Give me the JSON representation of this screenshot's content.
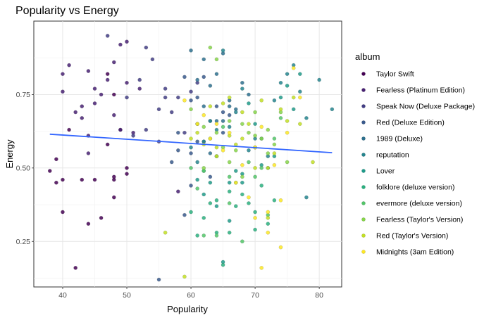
{
  "chart_data": {
    "type": "scatter",
    "title": "Popularity vs Energy",
    "xlabel": "Popularity",
    "ylabel": "Energy",
    "xlim": [
      35.5,
      83.5
    ],
    "ylim": [
      0.095,
      1.0
    ],
    "x_ticks": [
      40,
      50,
      60,
      70,
      80
    ],
    "y_ticks": [
      0.25,
      0.5,
      0.75
    ],
    "y_tick_labels": [
      "0.25",
      "0.50",
      "0.75"
    ],
    "grid": true,
    "legend_title": "album",
    "legend_position": "right",
    "trend_line": {
      "x": [
        38,
        82
      ],
      "y": [
        0.615,
        0.552
      ],
      "color": "#3366ff"
    },
    "series": [
      {
        "name": "Taylor Swift",
        "color": "#440154",
        "points": [
          [
            38,
            0.49
          ],
          [
            39,
            0.45
          ],
          [
            39,
            0.53
          ],
          [
            40,
            0.46
          ],
          [
            40,
            0.35
          ],
          [
            41,
            0.63
          ],
          [
            42,
            0.16
          ],
          [
            43,
            0.46
          ],
          [
            44,
            0.31
          ],
          [
            45,
            0.46
          ],
          [
            46,
            0.33
          ],
          [
            47,
            0.58
          ],
          [
            48,
            0.46
          ],
          [
            48,
            0.47
          ],
          [
            48,
            0.4
          ],
          [
            49,
            0.63
          ],
          [
            50,
            0.48
          ],
          [
            50,
            0.5
          ],
          [
            47,
            0.82
          ],
          [
            48,
            0.75
          ]
        ]
      },
      {
        "name": "Fearless (Platinum Edition)",
        "color": "#482173",
        "points": [
          [
            40,
            0.82
          ],
          [
            40,
            0.76
          ],
          [
            41,
            0.85
          ],
          [
            42,
            0.69
          ],
          [
            43,
            0.71
          ],
          [
            44,
            0.55
          ],
          [
            44,
            0.83
          ],
          [
            45,
            0.77
          ],
          [
            46,
            0.75
          ],
          [
            47,
            0.8
          ],
          [
            48,
            0.86
          ],
          [
            49,
            0.92
          ],
          [
            50,
            0.93
          ],
          [
            50,
            0.79
          ],
          [
            51,
            0.62
          ],
          [
            52,
            0.77
          ],
          [
            49,
            0.63
          ],
          [
            44,
            0.61
          ],
          [
            43,
            0.67
          ],
          [
            45,
            0.72
          ],
          [
            48,
            0.68
          ],
          [
            58,
            0.42
          ]
        ]
      },
      {
        "name": "Speak Now (Deluxe Package)",
        "color": "#433e85",
        "points": [
          [
            47,
            0.95
          ],
          [
            50,
            0.74
          ],
          [
            51,
            0.61
          ],
          [
            52,
            0.8
          ],
          [
            53,
            0.91
          ],
          [
            54,
            0.87
          ],
          [
            55,
            0.7
          ],
          [
            56,
            0.77
          ],
          [
            57,
            0.69
          ],
          [
            58,
            0.74
          ],
          [
            59,
            0.62
          ],
          [
            60,
            0.76
          ],
          [
            55,
            0.59
          ],
          [
            53,
            0.63
          ],
          [
            56,
            0.74
          ],
          [
            61,
            0.79
          ]
        ]
      },
      {
        "name": "Red (Deluxe Edition)",
        "color": "#38598c",
        "points": [
          [
            55,
            0.12
          ],
          [
            57,
            0.52
          ],
          [
            58,
            0.62
          ],
          [
            59,
            0.34
          ],
          [
            60,
            0.55
          ],
          [
            60,
            0.73
          ],
          [
            61,
            0.74
          ],
          [
            62,
            0.81
          ],
          [
            63,
            0.66
          ],
          [
            64,
            0.71
          ],
          [
            65,
            0.69
          ],
          [
            66,
            0.68
          ],
          [
            59,
            0.81
          ],
          [
            62,
            0.59
          ],
          [
            60,
            0.44
          ],
          [
            61,
            0.59
          ],
          [
            63,
            0.47
          ],
          [
            64,
            0.54
          ],
          [
            58,
            0.56
          ],
          [
            65,
            0.62
          ]
        ]
      },
      {
        "name": "1989 (Deluxe)",
        "color": "#2d708e",
        "points": [
          [
            60,
            0.9
          ],
          [
            61,
            0.8
          ],
          [
            62,
            0.71
          ],
          [
            63,
            0.78
          ],
          [
            64,
            0.66
          ],
          [
            65,
            0.89
          ],
          [
            66,
            0.73
          ],
          [
            67,
            0.7
          ],
          [
            68,
            0.79
          ],
          [
            69,
            0.75
          ],
          [
            62,
            0.87
          ],
          [
            66,
            0.71
          ],
          [
            64,
            0.82
          ],
          [
            61,
            0.65
          ],
          [
            63,
            0.55
          ],
          [
            65,
            0.66
          ]
        ]
      },
      {
        "name": "reputation",
        "color": "#25858e",
        "points": [
          [
            60,
            0.57
          ],
          [
            61,
            0.52
          ],
          [
            62,
            0.59
          ],
          [
            63,
            0.66
          ],
          [
            64,
            0.63
          ],
          [
            65,
            0.9
          ],
          [
            66,
            0.64
          ],
          [
            67,
            0.69
          ],
          [
            68,
            0.77
          ],
          [
            69,
            0.56
          ],
          [
            70,
            0.6
          ],
          [
            71,
            0.6
          ],
          [
            72,
            0.54
          ],
          [
            73,
            0.73
          ],
          [
            74,
            0.79
          ],
          [
            75,
            0.82
          ],
          [
            76,
            0.85
          ],
          [
            77,
            0.76
          ],
          [
            78,
            0.67
          ],
          [
            80,
            0.8
          ],
          [
            82,
            0.7
          ],
          [
            78,
            0.4
          ]
        ]
      },
      {
        "name": "Lover",
        "color": "#1e9b8a",
        "points": [
          [
            61,
            0.46
          ],
          [
            62,
            0.41
          ],
          [
            63,
            0.45
          ],
          [
            64,
            0.37
          ],
          [
            65,
            0.18
          ],
          [
            66,
            0.32
          ],
          [
            67,
            0.49
          ],
          [
            68,
            0.48
          ],
          [
            69,
            0.72
          ],
          [
            70,
            0.65
          ],
          [
            71,
            0.51
          ],
          [
            72,
            0.5
          ],
          [
            73,
            0.54
          ],
          [
            74,
            0.74
          ],
          [
            75,
            0.78
          ],
          [
            76,
            0.7
          ],
          [
            77,
            0.82
          ],
          [
            70,
            0.57
          ],
          [
            68,
            0.45
          ],
          [
            66,
            0.45
          ]
        ]
      },
      {
        "name": "folklore (deluxe version)",
        "color": "#2ab07f",
        "points": [
          [
            60,
            0.35
          ],
          [
            61,
            0.27
          ],
          [
            62,
            0.33
          ],
          [
            63,
            0.38
          ],
          [
            64,
            0.28
          ],
          [
            65,
            0.17
          ],
          [
            66,
            0.42
          ],
          [
            67,
            0.37
          ],
          [
            68,
            0.41
          ],
          [
            69,
            0.38
          ],
          [
            70,
            0.35
          ],
          [
            71,
            0.44
          ],
          [
            72,
            0.31
          ],
          [
            73,
            0.39
          ],
          [
            62,
            0.49
          ],
          [
            64,
            0.39
          ],
          [
            66,
            0.28
          ],
          [
            70,
            0.29
          ]
        ]
      },
      {
        "name": "evermore (deluxe version)",
        "color": "#52c569",
        "points": [
          [
            60,
            0.5
          ],
          [
            61,
            0.43
          ],
          [
            62,
            0.49
          ],
          [
            63,
            0.6
          ],
          [
            64,
            0.27
          ],
          [
            65,
            0.64
          ],
          [
            66,
            0.38
          ],
          [
            67,
            0.45
          ],
          [
            68,
            0.25
          ],
          [
            69,
            0.52
          ],
          [
            70,
            0.47
          ],
          [
            71,
            0.5
          ],
          [
            72,
            0.34
          ],
          [
            73,
            0.6
          ],
          [
            74,
            0.67
          ],
          [
            62,
            0.27
          ],
          [
            64,
            0.54
          ],
          [
            66,
            0.47
          ]
        ]
      },
      {
        "name": "Fearless (Taylor's Version)",
        "color": "#86d549",
        "points": [
          [
            60,
            0.7
          ],
          [
            61,
            0.65
          ],
          [
            62,
            0.64
          ],
          [
            63,
            0.91
          ],
          [
            64,
            0.87
          ],
          [
            65,
            0.57
          ],
          [
            66,
            0.66
          ],
          [
            67,
            0.56
          ],
          [
            68,
            0.65
          ],
          [
            69,
            0.62
          ],
          [
            70,
            0.69
          ],
          [
            71,
            0.6
          ],
          [
            72,
            0.63
          ],
          [
            73,
            0.58
          ],
          [
            74,
            0.69
          ],
          [
            75,
            0.52
          ],
          [
            62,
            0.5
          ],
          [
            66,
            0.52
          ],
          [
            68,
            0.47
          ],
          [
            70,
            0.61
          ],
          [
            64,
            0.62
          ],
          [
            72,
            0.55
          ]
        ]
      },
      {
        "name": "Red (Taylor's Version)",
        "color": "#c2df23",
        "points": [
          [
            59,
            0.13
          ],
          [
            60,
            0.6
          ],
          [
            61,
            0.62
          ],
          [
            62,
            0.58
          ],
          [
            63,
            0.71
          ],
          [
            64,
            0.57
          ],
          [
            65,
            0.72
          ],
          [
            66,
            0.74
          ],
          [
            67,
            0.58
          ],
          [
            68,
            0.6
          ],
          [
            69,
            0.65
          ],
          [
            70,
            0.57
          ],
          [
            71,
            0.73
          ],
          [
            72,
            0.33
          ],
          [
            73,
            0.55
          ],
          [
            74,
            0.7
          ],
          [
            75,
            0.66
          ],
          [
            76,
            0.74
          ],
          [
            77,
            0.65
          ],
          [
            79,
            0.52
          ],
          [
            56,
            0.28
          ],
          [
            66,
            0.61
          ],
          [
            70,
            0.5
          ],
          [
            68,
            0.69
          ],
          [
            64,
            0.54
          ],
          [
            72,
            0.5
          ]
        ]
      },
      {
        "name": "Midnights (3am Edition)",
        "color": "#fde725",
        "points": [
          [
            59,
            0.73
          ],
          [
            61,
            0.65
          ],
          [
            62,
            0.68
          ],
          [
            63,
            0.6
          ],
          [
            64,
            0.65
          ],
          [
            65,
            0.56
          ],
          [
            66,
            0.62
          ],
          [
            67,
            0.45
          ],
          [
            68,
            0.51
          ],
          [
            69,
            0.4
          ],
          [
            70,
            0.57
          ],
          [
            71,
            0.64
          ],
          [
            72,
            0.28
          ],
          [
            73,
            0.51
          ],
          [
            74,
            0.39
          ],
          [
            75,
            0.62
          ],
          [
            76,
            0.84
          ],
          [
            77,
            0.74
          ],
          [
            72,
            0.35
          ],
          [
            74,
            0.23
          ],
          [
            71,
            0.16
          ],
          [
            70,
            0.33
          ]
        ]
      }
    ]
  }
}
